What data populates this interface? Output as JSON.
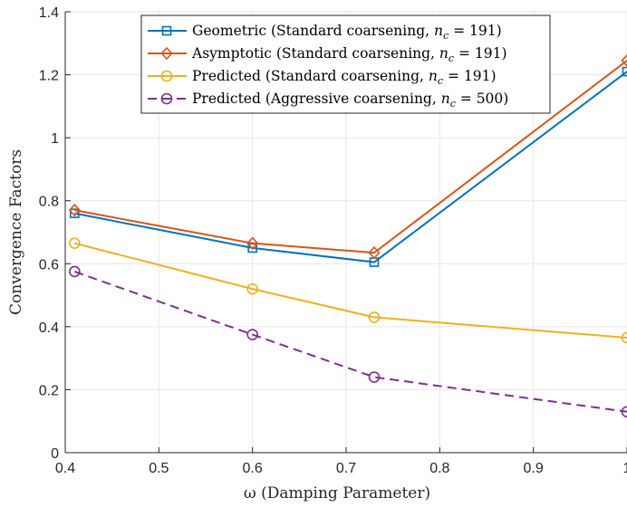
{
  "chart_data": {
    "type": "line",
    "xlabel": "ω (Damping Parameter)",
    "ylabel": "Convergence Factors",
    "xlim": [
      0.4,
      1.0
    ],
    "ylim": [
      0,
      1.4
    ],
    "xticks": [
      "0.4",
      "0.5",
      "0.6",
      "0.7",
      "0.8",
      "0.9",
      "1"
    ],
    "yticks": [
      "0",
      "0.2",
      "0.4",
      "0.6",
      "0.8",
      "1",
      "1.2",
      "1.4"
    ],
    "grid": true,
    "legend_position": "top-center",
    "x": [
      0.41,
      0.6,
      0.73,
      1.0
    ],
    "series": [
      {
        "name": "Geometric (Standard coarsening, n_c = 191)",
        "legend": [
          "Geometric (Standard coarsening, ",
          "n",
          "c",
          " = 191)"
        ],
        "values": [
          0.76,
          0.65,
          0.605,
          1.21
        ],
        "color": "#0072BD",
        "marker": "square",
        "dash": "solid"
      },
      {
        "name": "Asymptotic (Standard coarsening, n_c = 191)",
        "legend": [
          "Asymptotic (Standard coarsening, ",
          "n",
          "c",
          " = 191)"
        ],
        "values": [
          0.77,
          0.665,
          0.635,
          1.245
        ],
        "color": "#D95319",
        "marker": "diamond",
        "dash": "solid"
      },
      {
        "name": "Predicted (Standard coarsening, n_c = 191)",
        "legend": [
          "Predicted (Standard coarsening, ",
          "n",
          "c",
          " = 191)"
        ],
        "values": [
          0.665,
          0.52,
          0.43,
          0.365
        ],
        "color": "#EDB120",
        "marker": "circle",
        "dash": "solid"
      },
      {
        "name": "Predicted (Aggressive coarsening, n_c = 500)",
        "legend": [
          "Predicted (Aggressive coarsening, ",
          "n",
          "c",
          " = 500)"
        ],
        "values": [
          0.575,
          0.375,
          0.24,
          0.13
        ],
        "color": "#7E2F8E",
        "marker": "circle",
        "dash": "dashed"
      }
    ]
  }
}
